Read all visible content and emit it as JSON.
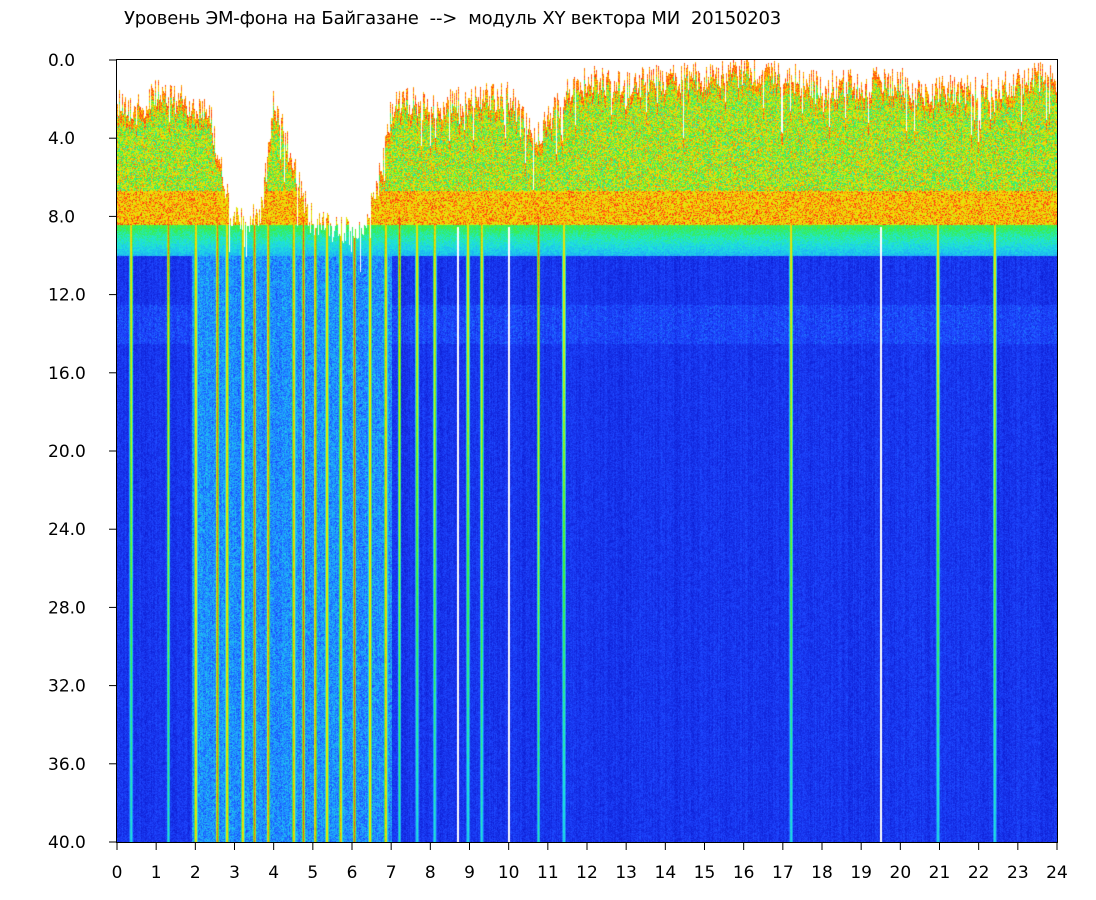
{
  "chart_data": {
    "type": "heatmap",
    "title": "Уровень ЭМ-фона на Байгазане  -->  модуль XY вектора МИ  20150203",
    "xlabel": "",
    "ylabel": "",
    "xlim": [
      0,
      24
    ],
    "ylim": [
      40,
      0
    ],
    "x_ticks": [
      "0",
      "1",
      "2",
      "3",
      "4",
      "5",
      "6",
      "7",
      "8",
      "9",
      "10",
      "11",
      "12",
      "13",
      "14",
      "15",
      "16",
      "17",
      "18",
      "19",
      "20",
      "21",
      "22",
      "23",
      "24"
    ],
    "y_ticks": [
      "0.0",
      "4.0",
      "8.0",
      "12.0",
      "16.0",
      "20.0",
      "24.0",
      "28.0",
      "32.0",
      "36.0",
      "40.0"
    ],
    "y_tick_values": [
      0,
      4,
      8,
      12,
      16,
      20,
      24,
      28,
      32,
      36,
      40
    ],
    "grid": false,
    "colormap": [
      "#0a14c8",
      "#1e46ff",
      "#1ea0ff",
      "#1ee6dc",
      "#3cf03c",
      "#c8f014",
      "#ffd700",
      "#ff2814"
    ],
    "background_color": "#0a14c8",
    "no_data_color": "#ffffff",
    "signal_top_profile": {
      "hours": [
        0,
        0.2,
        0.5,
        0.9,
        1.1,
        1.6,
        2.1,
        2.4,
        2.9,
        3.3,
        3.7,
        4.0,
        4.4,
        4.9,
        5.3,
        5.8,
        6.2,
        6.6,
        7.0,
        7.5,
        8.0,
        8.5,
        9.0,
        9.5,
        10.0,
        10.6,
        11.0,
        11.5,
        12.0,
        13.0,
        14.0,
        15.0,
        16.0,
        17.0,
        18.0,
        19.0,
        20.0,
        20.7,
        21.0,
        22.0,
        23.0,
        24.0
      ],
      "top_level": [
        2.0,
        2.2,
        2.6,
        1.8,
        1.8,
        2.0,
        2.4,
        3.0,
        8.0,
        8.5,
        7.5,
        2.0,
        4.5,
        8.0,
        8.5,
        8.8,
        9.0,
        7.0,
        2.5,
        2.0,
        2.5,
        2.2,
        2.0,
        1.8,
        1.8,
        4.0,
        3.0,
        1.5,
        1.0,
        1.2,
        1.0,
        0.8,
        0.6,
        0.8,
        1.3,
        1.2,
        1.0,
        2.0,
        1.5,
        1.5,
        1.0,
        0.8
      ]
    },
    "strong_band_center": 7.5,
    "disturbed_period_hours": [
      1.9,
      7.0
    ],
    "blank_column_hours": [
      8.7,
      10.0,
      19.5
    ],
    "bright_column_hours": [
      0.35,
      1.3,
      2.0,
      2.55,
      2.8,
      3.2,
      3.5,
      3.85,
      4.5,
      4.75,
      5.05,
      5.35,
      5.7,
      6.05,
      6.45,
      6.85,
      7.2,
      7.65,
      8.1,
      8.95,
      9.3,
      10.75,
      11.4,
      17.2,
      20.95,
      22.4
    ]
  }
}
